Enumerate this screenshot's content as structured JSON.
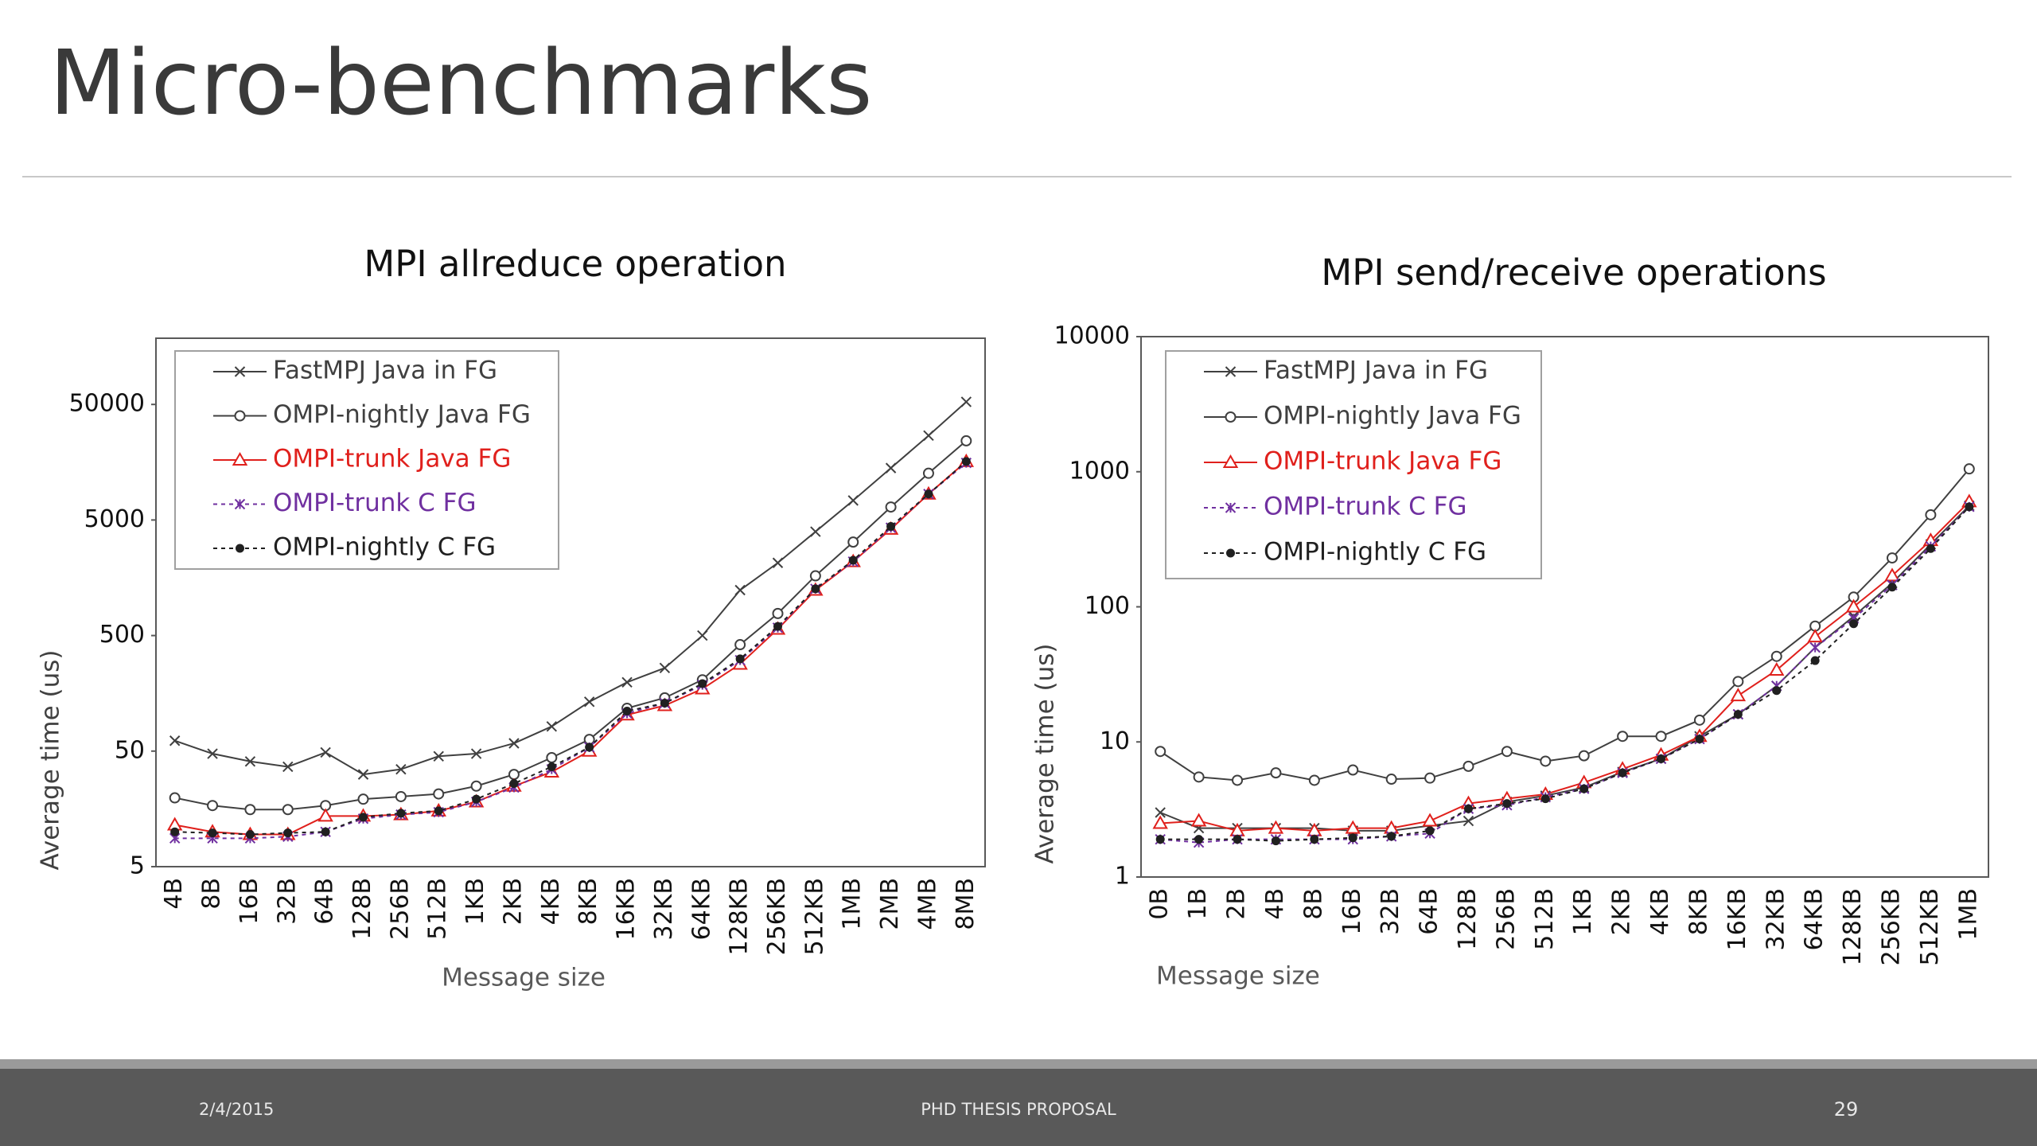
{
  "slide_title": "Micro-benchmarks",
  "footer": {
    "date": "2/4/2015",
    "text": "PHD THESIS PROPOSAL",
    "page": "29"
  },
  "chart_data": [
    {
      "type": "line",
      "title": "MPI allreduce operation",
      "x_label": "Message size",
      "y_label": "Average time (us)",
      "yscale": "log",
      "ylim": [
        5,
        187000
      ],
      "yticks": [
        5,
        50,
        500,
        5000,
        50000
      ],
      "grid": false,
      "legend": "upper-left",
      "categories": [
        "4B",
        "8B",
        "16B",
        "32B",
        "64B",
        "128B",
        "256B",
        "512B",
        "1KB",
        "2KB",
        "4KB",
        "8KB",
        "16KB",
        "32KB",
        "64KB",
        "128KB",
        "256KB",
        "512KB",
        "1MB",
        "2MB",
        "4MB",
        "8MB"
      ],
      "series": [
        {
          "name": "FastMPJ Java in FG",
          "color": "#404040",
          "marker": "x",
          "dashed": false,
          "values": [
            61.5,
            47.5,
            40.7,
            36.6,
            48.7,
            31.4,
            34.8,
            45.1,
            47.5,
            58.4,
            81.7,
            133.6,
            197,
            262,
            500,
            1236,
            2128,
            3962,
            7377,
            14070,
            26870,
            52640
          ]
        },
        {
          "name": "OMPI-nightly Java FG",
          "color": "#404040",
          "marker": "circle",
          "dashed": false,
          "values": [
            19.7,
            16.9,
            15.6,
            15.6,
            16.9,
            19.2,
            20.2,
            21.3,
            24.9,
            31.4,
            43.9,
            63.1,
            117.4,
            144.5,
            207,
            417,
            776,
            1644,
            3221,
            6475,
            12690,
            24220
          ]
        },
        {
          "name": "OMPI-trunk Java FG",
          "color": "#e0201c",
          "marker": "triangle",
          "dashed": false,
          "values": [
            11.5,
            10.0,
            9.5,
            9.5,
            13.7,
            13.7,
            14.1,
            15.2,
            18.2,
            24.9,
            33.0,
            50,
            103,
            124,
            173,
            283,
            569,
            1236,
            2183,
            4170,
            8390,
            16030
          ]
        },
        {
          "name": "OMPI-trunk C FG",
          "color": "#7030a0",
          "marker": "star",
          "dashed": true,
          "values": [
            8.8,
            8.8,
            8.8,
            9.1,
            10.0,
            13.0,
            14.1,
            14.8,
            18.2,
            24.2,
            34.8,
            54.0,
            106,
            130,
            187,
            306,
            584,
            1268,
            2183,
            4285,
            8390,
            15600
          ]
        },
        {
          "name": "OMPI-nightly C FG",
          "color": "#202020",
          "marker": "dot",
          "dashed": true,
          "values": [
            10.0,
            9.8,
            9.5,
            9.8,
            10.0,
            13.4,
            14.5,
            15.2,
            19.2,
            26.2,
            36.6,
            54.0,
            111,
            130,
            192,
            314,
            600,
            1268,
            2243,
            4393,
            8390,
            16030
          ]
        }
      ]
    },
    {
      "type": "line",
      "title": "MPI send/receive operations",
      "x_label": "Message size",
      "y_label": "Average time (us)",
      "yscale": "log",
      "ylim": [
        1,
        10000
      ],
      "yticks": [
        1,
        10,
        100,
        1000,
        10000
      ],
      "grid": false,
      "legend": "upper-left",
      "categories": [
        "0B",
        "1B",
        "2B",
        "4B",
        "8B",
        "16B",
        "32B",
        "64B",
        "128B",
        "256B",
        "512B",
        "1KB",
        "2KB",
        "4KB",
        "8KB",
        "16KB",
        "32KB",
        "64KB",
        "128KB",
        "256KB",
        "512KB",
        "1MB"
      ],
      "series": [
        {
          "name": "FastMPJ Java in FG",
          "color": "#404040",
          "marker": "x",
          "dashed": false,
          "values": [
            3.0,
            2.3,
            2.3,
            2.3,
            2.3,
            2.2,
            2.2,
            2.4,
            2.6,
            3.6,
            4.0,
            4.6,
            6.0,
            7.5,
            11,
            16,
            26,
            50,
            85,
            150,
            290,
            560
          ]
        },
        {
          "name": "OMPI-nightly Java FG",
          "color": "#404040",
          "marker": "circle",
          "dashed": false,
          "values": [
            8.5,
            5.5,
            5.2,
            5.9,
            5.2,
            6.2,
            5.3,
            5.4,
            6.6,
            8.5,
            7.2,
            7.9,
            11,
            11,
            14.5,
            28,
            43,
            72,
            118,
            230,
            480,
            1050
          ]
        },
        {
          "name": "OMPI-trunk Java FG",
          "color": "#e0201c",
          "marker": "triangle",
          "dashed": false,
          "values": [
            2.5,
            2.6,
            2.2,
            2.3,
            2.2,
            2.3,
            2.3,
            2.6,
            3.5,
            3.8,
            4.1,
            5.0,
            6.3,
            8.0,
            11,
            22,
            34,
            60,
            100,
            170,
            310,
            600
          ]
        },
        {
          "name": "OMPI-trunk C FG",
          "color": "#7030a0",
          "marker": "star",
          "dashed": true,
          "values": [
            1.9,
            1.8,
            1.9,
            1.9,
            1.9,
            1.9,
            2.0,
            2.1,
            3.2,
            3.4,
            3.9,
            4.5,
            5.9,
            7.5,
            10.5,
            16,
            26,
            50,
            82,
            145,
            280,
            550
          ]
        },
        {
          "name": "OMPI-nightly C FG",
          "color": "#202020",
          "marker": "dot",
          "dashed": true,
          "values": [
            1.9,
            1.9,
            1.9,
            1.85,
            1.9,
            1.95,
            2.0,
            2.2,
            3.2,
            3.5,
            3.8,
            4.5,
            5.9,
            7.5,
            10.5,
            16,
            24,
            40,
            75,
            140,
            270,
            550
          ]
        }
      ]
    }
  ]
}
